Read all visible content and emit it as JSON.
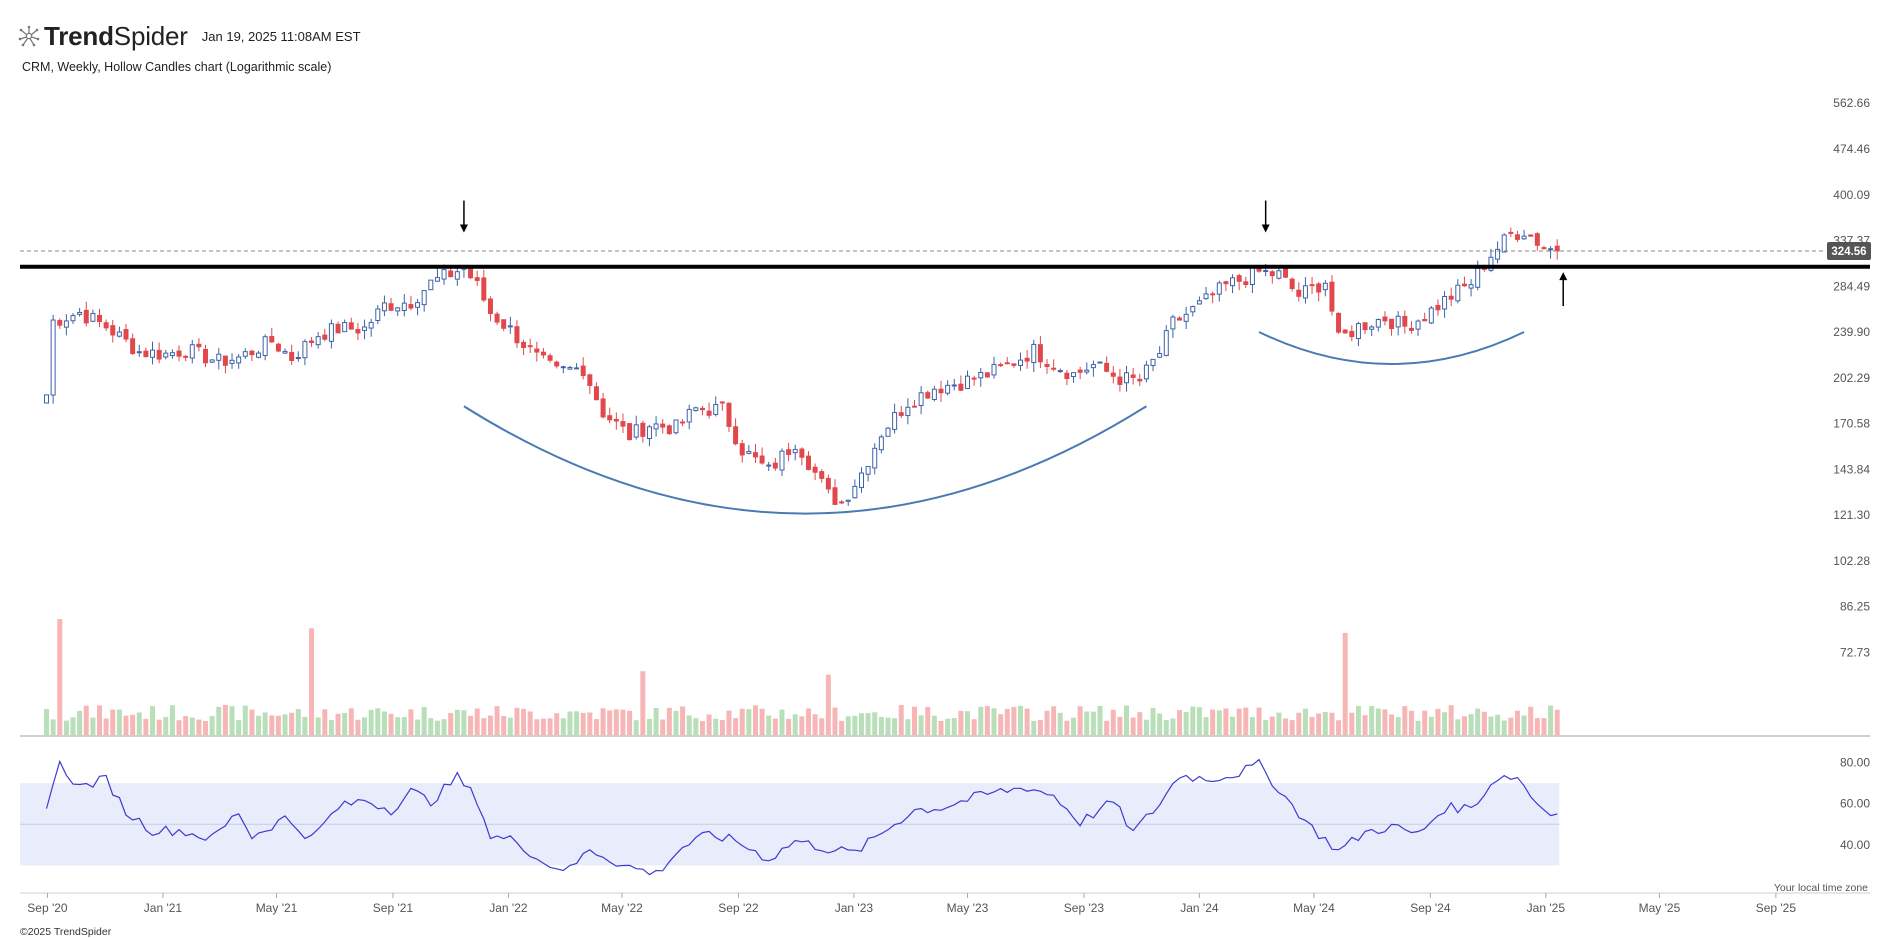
{
  "header": {
    "logo_bold": "Trend",
    "logo_light": "Spider",
    "timestamp": "Jan 19, 2025 11:08AM EST",
    "subtitle": "CRM, Weekly, Hollow Candles chart (Logarithmic scale)"
  },
  "footer": {
    "copyright": "©2025 TrendSpider",
    "timezone_note": "Your local time zone"
  },
  "colors": {
    "up": "#3d63a8",
    "down": "#e0484c",
    "vol_up": "#b9dfb9",
    "vol_down": "#f7b6b6",
    "arc": "#4a7ab5",
    "rsi_line": "#3c3cd0",
    "rsi_band": "#e9ecfa",
    "support": "#000000"
  },
  "chart_data": {
    "type": "candlestick",
    "symbol": "CRM",
    "interval": "Weekly",
    "style": "Hollow Candles",
    "scale": "logarithmic",
    "price_ticks": [
      "562.66",
      "474.46",
      "400.09",
      "337.37",
      "284.49",
      "239.90",
      "202.29",
      "170.58",
      "143.84",
      "121.30",
      "102.28",
      "86.25",
      "72.73"
    ],
    "x_ticks": [
      "Sep '20",
      "Jan '21",
      "May '21",
      "Sep '21",
      "Jan '22",
      "May '22",
      "Sep '22",
      "Jan '23",
      "May '23",
      "Sep '23",
      "Jan '24",
      "May '24",
      "Sep '24",
      "Jan '25",
      "May '25",
      "Sep '25"
    ],
    "last_price": "324.56",
    "support_level": 306,
    "close_path": [
      [
        "2020-08-31",
        190
      ],
      [
        "2020-09-07",
        250
      ],
      [
        "2020-10-05",
        258
      ],
      [
        "2020-11-02",
        245
      ],
      [
        "2020-12-07",
        223
      ],
      [
        "2021-01-04",
        221
      ],
      [
        "2021-01-25",
        225
      ],
      [
        "2021-03-01",
        215
      ],
      [
        "2021-03-22",
        218
      ],
      [
        "2021-04-26",
        232
      ],
      [
        "2021-05-17",
        218
      ],
      [
        "2021-06-14",
        238
      ],
      [
        "2021-07-05",
        243
      ],
      [
        "2021-08-02",
        243
      ],
      [
        "2021-08-23",
        265
      ],
      [
        "2021-09-20",
        269
      ],
      [
        "2021-10-11",
        288
      ],
      [
        "2021-11-15",
        305
      ],
      [
        "2021-11-29",
        285
      ],
      [
        "2021-12-13",
        258
      ],
      [
        "2022-01-03",
        242
      ],
      [
        "2022-01-31",
        218
      ],
      [
        "2022-02-21",
        207
      ],
      [
        "2022-03-21",
        210
      ],
      [
        "2022-04-11",
        178
      ],
      [
        "2022-05-09",
        163
      ],
      [
        "2022-05-30",
        170
      ],
      [
        "2022-06-27",
        168
      ],
      [
        "2022-07-18",
        180
      ],
      [
        "2022-08-15",
        180
      ],
      [
        "2022-09-05",
        155
      ],
      [
        "2022-10-03",
        143
      ],
      [
        "2022-11-01",
        160
      ],
      [
        "2022-11-21",
        142
      ],
      [
        "2022-12-05",
        131
      ],
      [
        "2022-12-19",
        127
      ],
      [
        "2023-01-09",
        142
      ],
      [
        "2023-01-30",
        165
      ],
      [
        "2023-02-27",
        185
      ],
      [
        "2023-03-27",
        195
      ],
      [
        "2023-04-24",
        199
      ],
      [
        "2023-05-22",
        205
      ],
      [
        "2023-06-12",
        212
      ],
      [
        "2023-07-10",
        224
      ],
      [
        "2023-07-31",
        213
      ],
      [
        "2023-08-21",
        205
      ],
      [
        "2023-09-11",
        212
      ],
      [
        "2023-10-09",
        202
      ],
      [
        "2023-10-30",
        200
      ],
      [
        "2023-11-20",
        222
      ],
      [
        "2023-12-04",
        248
      ],
      [
        "2024-01-01",
        265
      ],
      [
        "2024-01-29",
        285
      ],
      [
        "2024-03-04",
        300
      ],
      [
        "2024-03-25",
        297
      ],
      [
        "2024-04-15",
        275
      ],
      [
        "2024-05-13",
        290
      ],
      [
        "2024-05-27",
        233
      ],
      [
        "2024-06-17",
        245
      ],
      [
        "2024-07-15",
        253
      ],
      [
        "2024-08-05",
        245
      ],
      [
        "2024-08-26",
        255
      ],
      [
        "2024-09-16",
        270
      ],
      [
        "2024-10-14",
        288
      ],
      [
        "2024-11-04",
        320
      ],
      [
        "2024-11-25",
        345
      ],
      [
        "2024-12-09",
        350
      ],
      [
        "2024-12-30",
        330
      ],
      [
        "2025-01-13",
        324
      ]
    ],
    "volume_scale_max": 100,
    "volume_spikes": [
      [
        "2020-09-14",
        100
      ],
      [
        "2021-06-07",
        92
      ],
      [
        "2024-06-03",
        88
      ],
      [
        "2022-12-05",
        52
      ],
      [
        "2022-05-23",
        55
      ]
    ],
    "rsi": {
      "ylim": [
        20,
        90
      ],
      "band": [
        30,
        70
      ],
      "mid": 50,
      "ticks": [
        "80.00",
        "60.00",
        "40.00"
      ],
      "points": [
        [
          "2020-08-31",
          60
        ],
        [
          "2020-09-14",
          79
        ],
        [
          "2020-10-05",
          68
        ],
        [
          "2020-11-02",
          72
        ],
        [
          "2020-11-23",
          56
        ],
        [
          "2020-12-21",
          47
        ],
        [
          "2021-01-18",
          47
        ],
        [
          "2021-02-22",
          43
        ],
        [
          "2021-03-22",
          56
        ],
        [
          "2021-04-05",
          44
        ],
        [
          "2021-05-10",
          53
        ],
        [
          "2021-06-07",
          43
        ],
        [
          "2021-07-05",
          58
        ],
        [
          "2021-08-02",
          62
        ],
        [
          "2021-08-30",
          57
        ],
        [
          "2021-09-20",
          66
        ],
        [
          "2021-10-11",
          61
        ],
        [
          "2021-11-08",
          73
        ],
        [
          "2021-11-29",
          62
        ],
        [
          "2021-12-13",
          44
        ],
        [
          "2022-01-10",
          42
        ],
        [
          "2022-02-07",
          31
        ],
        [
          "2022-03-07",
          28
        ],
        [
          "2022-03-28",
          38
        ],
        [
          "2022-05-02",
          30
        ],
        [
          "2022-06-06",
          26
        ],
        [
          "2022-07-04",
          39
        ],
        [
          "2022-08-01",
          45
        ],
        [
          "2022-08-29",
          42
        ],
        [
          "2022-10-03",
          33
        ],
        [
          "2022-10-31",
          42
        ],
        [
          "2022-12-05",
          38
        ],
        [
          "2023-01-02",
          36
        ],
        [
          "2023-02-06",
          48
        ],
        [
          "2023-03-06",
          57
        ],
        [
          "2023-04-03",
          58
        ],
        [
          "2023-05-08",
          63
        ],
        [
          "2023-06-05",
          66
        ],
        [
          "2023-07-03",
          68
        ],
        [
          "2023-07-31",
          64
        ],
        [
          "2023-08-28",
          51
        ],
        [
          "2023-10-02",
          61
        ],
        [
          "2023-10-23",
          46
        ],
        [
          "2023-11-20",
          60
        ],
        [
          "2023-12-11",
          74
        ],
        [
          "2024-01-08",
          72
        ],
        [
          "2024-02-05",
          74
        ],
        [
          "2024-03-04",
          79
        ],
        [
          "2024-04-01",
          63
        ],
        [
          "2024-04-29",
          48
        ],
        [
          "2024-05-27",
          37
        ],
        [
          "2024-06-24",
          46
        ],
        [
          "2024-07-22",
          49
        ],
        [
          "2024-08-19",
          45
        ],
        [
          "2024-09-16",
          58
        ],
        [
          "2024-10-14",
          58
        ],
        [
          "2024-11-11",
          73
        ],
        [
          "2024-12-02",
          73
        ],
        [
          "2024-12-23",
          60
        ],
        [
          "2025-01-13",
          55
        ]
      ]
    },
    "annotations": [
      {
        "type": "arrow-down",
        "date": "2021-11-15",
        "label": ""
      },
      {
        "type": "arrow-down",
        "date": "2024-03-11",
        "label": ""
      },
      {
        "type": "arrow-up",
        "date": "2025-01-13",
        "label": ""
      },
      {
        "type": "arc",
        "from": "2021-11-15",
        "to": "2023-11-06",
        "low": 122,
        "high": 182
      },
      {
        "type": "arc",
        "from": "2024-03-04",
        "to": "2024-12-09",
        "low": 213,
        "high": 240
      }
    ]
  }
}
